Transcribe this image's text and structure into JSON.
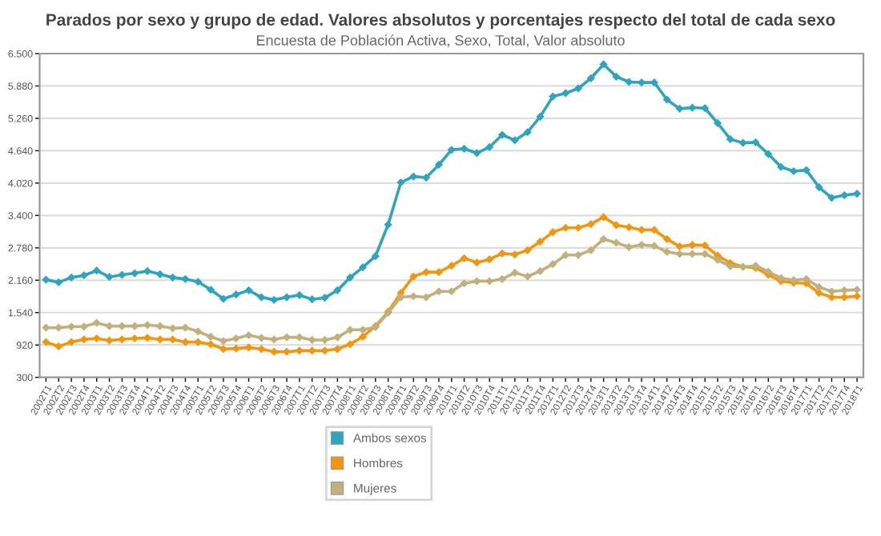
{
  "chart_data": {
    "type": "line",
    "title": "Parados por sexo y grupo de edad. Valores absolutos y porcentajes respecto del total de cada sexo",
    "subtitle": "Encuesta de Población Activa, Sexo, Total, Valor absoluto",
    "categories": [
      "2002T1",
      "2002T2",
      "2002T3",
      "2002T4",
      "2003T1",
      "2003T2",
      "2003T3",
      "2003T4",
      "2004T1",
      "2004T2",
      "2004T3",
      "2004T4",
      "2005T1",
      "2005T2",
      "2005T3",
      "2005T4",
      "2006T1",
      "2006T2",
      "2006T3",
      "2006T4",
      "2007T1",
      "2007T2",
      "2007T3",
      "2007T4",
      "2008T1",
      "2008T2",
      "2008T3",
      "2008T4",
      "2009T1",
      "2009T2",
      "2009T3",
      "2009T4",
      "2010T1",
      "2010T2",
      "2010T3",
      "2010T4",
      "2011T1",
      "2011T2",
      "2011T3",
      "2011T4",
      "2012T1",
      "2012T2",
      "2012T3",
      "2012T4",
      "2013T1",
      "2013T2",
      "2013T3",
      "2013T4",
      "2014T1",
      "2014T2",
      "2014T3",
      "2014T4",
      "2015T1",
      "2015T2",
      "2015T3",
      "2015T4",
      "2016T1",
      "2016T2",
      "2016T3",
      "2016T4",
      "2017T1",
      "2017T2",
      "2017T3",
      "2017T4",
      "2018T1"
    ],
    "series": [
      {
        "name": "Ambos sexos",
        "color": "#2fa4bf",
        "values": [
          2171,
          2120,
          2212,
          2253,
          2345,
          2222,
          2263,
          2294,
          2335,
          2274,
          2212,
          2182,
          2130,
          1977,
          1803,
          1885,
          1967,
          1834,
          1783,
          1834,
          1875,
          1793,
          1824,
          1967,
          2212,
          2407,
          2621,
          3225,
          4033,
          4146,
          4125,
          4371,
          4657,
          4678,
          4596,
          4708,
          4944,
          4841,
          4995,
          5292,
          5680,
          5742,
          5834,
          6028,
          6294,
          6059,
          5957,
          5946,
          5946,
          5619,
          5445,
          5465,
          5455,
          5169,
          4862,
          4790,
          4801,
          4576,
          4330,
          4248,
          4269,
          3941,
          3737,
          3788,
          3818
        ]
      },
      {
        "name": "Hombres",
        "color": "#f2960f",
        "values": [
          975,
          893,
          975,
          1026,
          1046,
          1005,
          1026,
          1046,
          1056,
          1026,
          1026,
          975,
          975,
          934,
          842,
          852,
          872,
          842,
          790,
          790,
          811,
          811,
          811,
          842,
          934,
          1077,
          1281,
          1557,
          1916,
          2233,
          2315,
          2315,
          2437,
          2581,
          2499,
          2560,
          2673,
          2652,
          2734,
          2898,
          3082,
          3164,
          3164,
          3235,
          3368,
          3215,
          3174,
          3123,
          3123,
          2949,
          2806,
          2836,
          2826,
          2632,
          2489,
          2417,
          2397,
          2264,
          2141,
          2110,
          2100,
          1916,
          1834,
          1834,
          1854
        ]
      },
      {
        "name": "Mujeres",
        "color": "#c2b07c",
        "values": [
          1251,
          1251,
          1271,
          1271,
          1343,
          1281,
          1281,
          1281,
          1302,
          1281,
          1240,
          1251,
          1179,
          1077,
          995,
          1046,
          1107,
          1056,
          1026,
          1067,
          1067,
          1016,
          1016,
          1067,
          1210,
          1210,
          1261,
          1537,
          1834,
          1854,
          1834,
          1946,
          1946,
          2100,
          2141,
          2141,
          2182,
          2304,
          2233,
          2335,
          2468,
          2642,
          2642,
          2734,
          2949,
          2877,
          2795,
          2836,
          2816,
          2703,
          2663,
          2663,
          2663,
          2550,
          2427,
          2417,
          2437,
          2325,
          2202,
          2161,
          2182,
          2028,
          1946,
          1967,
          1977
        ]
      }
    ],
    "ylim": [
      300,
      6500
    ],
    "yticks": [
      {
        "value": 300,
        "label": "300"
      },
      {
        "value": 920,
        "label": "920"
      },
      {
        "value": 1540,
        "label": "1.540"
      },
      {
        "value": 2160,
        "label": "2.160"
      },
      {
        "value": 2780,
        "label": "2.780"
      },
      {
        "value": 3400,
        "label": "3.400"
      },
      {
        "value": 4020,
        "label": "4.020"
      },
      {
        "value": 4640,
        "label": "4.640"
      },
      {
        "value": 5260,
        "label": "5.260"
      },
      {
        "value": 5880,
        "label": "5.880"
      },
      {
        "value": 6500,
        "label": "6.500"
      }
    ],
    "grid": "y",
    "legend": "bottom",
    "marker": "diamond",
    "line_style": "solid"
  }
}
